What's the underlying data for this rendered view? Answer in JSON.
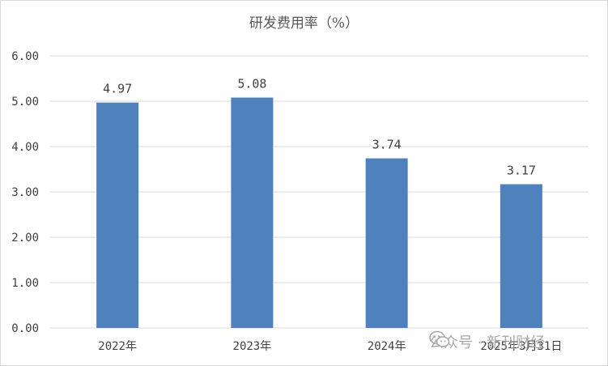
{
  "chart_data": {
    "type": "bar",
    "title": "研发费用率（%）",
    "categories": [
      "2022年",
      "2023年",
      "2024年",
      "2025年3月31日"
    ],
    "values": [
      4.97,
      5.08,
      3.74,
      3.17
    ],
    "data_labels": [
      "4.97",
      "5.08",
      "3.74",
      "3.17"
    ],
    "ylim": [
      0,
      6
    ],
    "yticks": [
      "0.00",
      "1.00",
      "2.00",
      "3.00",
      "4.00",
      "5.00",
      "6.00"
    ],
    "grid": true,
    "bar_color": "#4f81bd",
    "gridline_color": "#d9d9d9"
  },
  "watermark": {
    "text": "公众号 · 新刊财经",
    "icon": "wechat-icon"
  }
}
